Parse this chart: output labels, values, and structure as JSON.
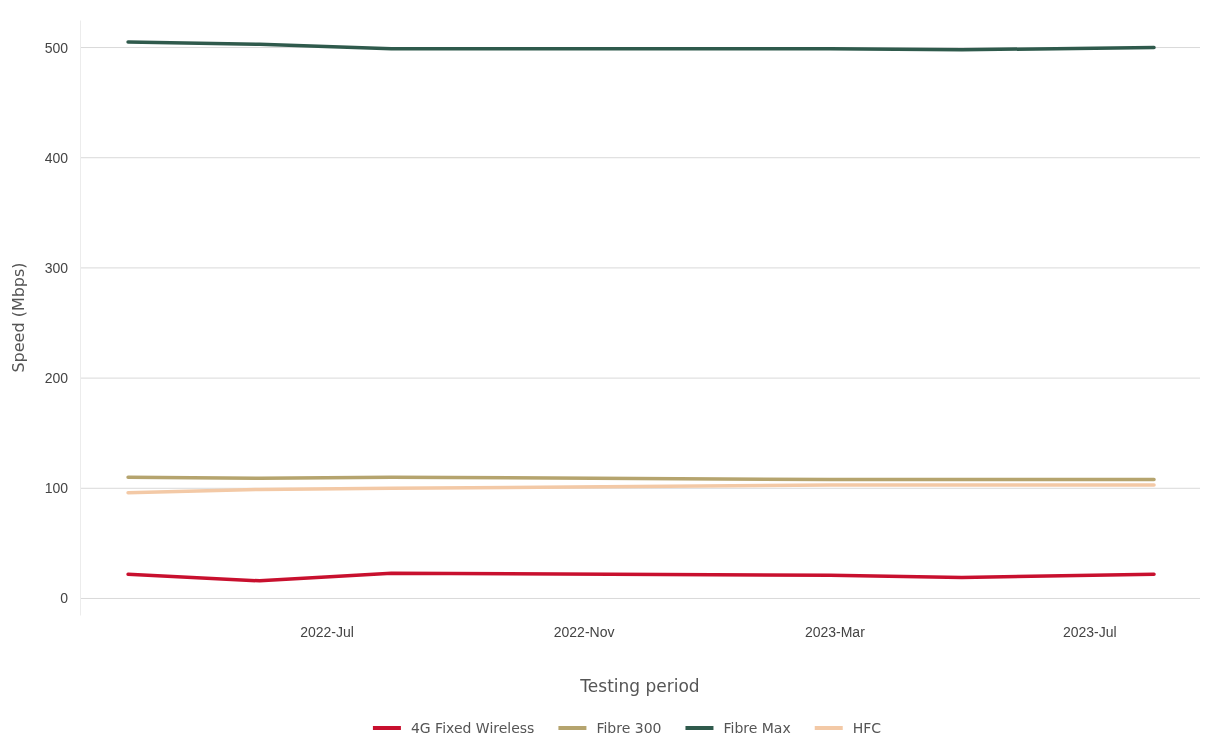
{
  "chart_data": {
    "type": "line",
    "xlabel": "Testing period",
    "ylabel": "Speed (Mbps)",
    "x": [
      "2022-03-28",
      "2022-05-30",
      "2022-08-01",
      "2023-02-27",
      "2023-05-01",
      "2023-08-01"
    ],
    "xlim": [
      "2022-03-05",
      "2023-08-23"
    ],
    "xticks": [
      {
        "value": "2022-07-01",
        "label": "2022-Jul"
      },
      {
        "value": "2022-11-01",
        "label": "2022-Nov"
      },
      {
        "value": "2023-03-01",
        "label": "2023-Mar"
      },
      {
        "value": "2023-07-01",
        "label": "2023-Jul"
      }
    ],
    "ylim": [
      -15,
      525
    ],
    "yticks": [
      0,
      100,
      200,
      300,
      400,
      500
    ],
    "grid": "y",
    "legend": "bottom",
    "line_style": "solid",
    "marker": "none",
    "series": [
      {
        "name": "4G Fixed Wireless",
        "color": "#c8102e",
        "values": [
          22,
          16,
          23,
          21,
          19,
          22
        ]
      },
      {
        "name": "Fibre 300",
        "color": "#b5a46e",
        "values": [
          110,
          109,
          110,
          108,
          108,
          108
        ]
      },
      {
        "name": "Fibre Max",
        "color": "#2f5a4c",
        "values": [
          505,
          503,
          499,
          499,
          498,
          500
        ]
      },
      {
        "name": "HFC",
        "color": "#f3c9a6",
        "values": [
          96,
          99,
          100,
          103,
          103,
          103
        ]
      }
    ]
  }
}
